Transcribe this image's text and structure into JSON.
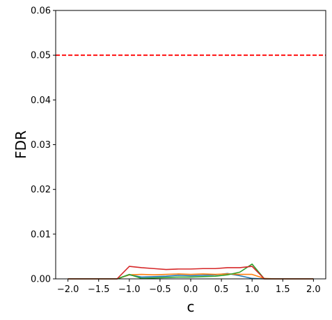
{
  "chart_data": {
    "type": "line",
    "title": "",
    "xlabel": "c",
    "ylabel": "FDR",
    "xlim": [
      -2.2,
      2.2
    ],
    "ylim": [
      0.0,
      0.06
    ],
    "xticks": [
      -2.0,
      -1.5,
      -1.0,
      -0.5,
      0.0,
      0.5,
      1.0,
      1.5,
      2.0
    ],
    "xtick_labels": [
      "−2.0",
      "−1.5",
      "−1.0",
      "−0.5",
      "0.0",
      "0.5",
      "1.0",
      "1.5",
      "2.0"
    ],
    "yticks": [
      0.0,
      0.01,
      0.02,
      0.03,
      0.04,
      0.05,
      0.06
    ],
    "ytick_labels": [
      "0.00",
      "0.01",
      "0.02",
      "0.03",
      "0.04",
      "0.05",
      "0.06"
    ],
    "grid": false,
    "reference_line": {
      "y": 0.05,
      "color": "#ff0000",
      "style": "dashed"
    },
    "x": [
      -2.0,
      -1.8,
      -1.6,
      -1.4,
      -1.2,
      -1.0,
      -0.8,
      -0.6,
      -0.4,
      -0.2,
      0.0,
      0.2,
      0.4,
      0.6,
      0.8,
      1.0,
      1.2,
      1.4,
      1.6,
      1.8,
      2.0
    ],
    "series": [
      {
        "color": "#1f77b4",
        "values": [
          0,
          0,
          0,
          0,
          0,
          0.0009,
          0.0004,
          0.0005,
          0.0006,
          0.0008,
          0.0007,
          0.0008,
          0.0009,
          0.0012,
          0.0007,
          0.0001,
          0,
          0,
          0,
          0,
          0
        ]
      },
      {
        "color": "#ff7f0e",
        "values": [
          0,
          0,
          0,
          0,
          0,
          0.0009,
          0.001,
          0.0009,
          0.001,
          0.0011,
          0.001,
          0.0011,
          0.001,
          0.0011,
          0.001,
          0.001,
          0.0001,
          0,
          0,
          0,
          0
        ]
      },
      {
        "color": "#2ca02c",
        "values": [
          0,
          0,
          0,
          0,
          0,
          0.001,
          0.0001,
          0.0002,
          0.0003,
          0.0004,
          0.0004,
          0.0005,
          0.0006,
          0.0009,
          0.0015,
          0.0033,
          0,
          0,
          0,
          0,
          0
        ]
      },
      {
        "color": "#d62728",
        "values": [
          0,
          0,
          0,
          0,
          0,
          0.0028,
          0.0025,
          0.0023,
          0.0021,
          0.0022,
          0.0022,
          0.0023,
          0.0023,
          0.0025,
          0.0025,
          0.0028,
          0,
          0,
          0,
          0,
          0
        ]
      }
    ]
  }
}
